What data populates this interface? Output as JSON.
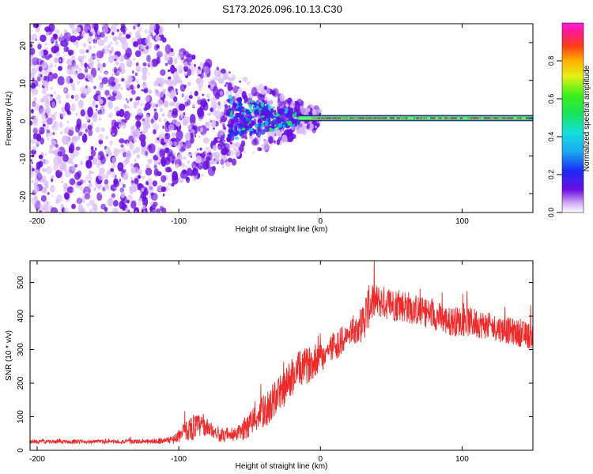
{
  "title": "S173.2026.096.10.13.C30",
  "colors": {
    "line": "#ee2a2a",
    "axis": "#000000",
    "center_blue": "#2a6df0",
    "center_green": "#1fe06a",
    "center_red": "#ff2a2a",
    "scatter_dark": "#6a0ee0",
    "scatter_light": "#d8bdf6"
  },
  "chart_data": [
    {
      "type": "heatmap",
      "title": "S173.2026.096.10.13.C30",
      "xlabel": "Height of straight line (km)",
      "ylabel": "Frequency (Hz)",
      "xlim": [
        -205,
        150
      ],
      "ylim": [
        -25,
        25
      ],
      "xticks": [
        -200,
        -100,
        0,
        100
      ],
      "yticks": [
        20,
        10,
        0,
        -10,
        -20
      ],
      "colorbar": {
        "label": "Normalized spectral amplitude",
        "range": [
          0,
          1
        ],
        "ticks": [
          0.0,
          0.2,
          0.4,
          0.6,
          0.8
        ]
      },
      "series": [
        {
          "name": "scatter-region",
          "x_range": [
            -205,
            -15
          ],
          "freq_range": [
            -25,
            25
          ],
          "note": "purple speckle, amplitude ~0.1-0.2"
        },
        {
          "name": "converging-band",
          "x_range": [
            -60,
            -15
          ],
          "freq_range": [
            -5,
            5
          ],
          "amplitude": [
            0.2,
            0.5
          ]
        },
        {
          "name": "center-band",
          "x_range": [
            -15,
            150
          ],
          "freq_range": [
            -0.6,
            0.6
          ],
          "amplitude": [
            0.6,
            0.95
          ]
        }
      ]
    },
    {
      "type": "line",
      "title": "",
      "xlabel": "Height of straight line (km)",
      "ylabel": "SNR (10 * v/v)",
      "xlim": [
        -205,
        150
      ],
      "ylim": [
        0,
        565
      ],
      "xticks": [
        -200,
        -100,
        0,
        100
      ],
      "yticks": [
        0,
        100,
        200,
        300,
        400,
        500
      ],
      "series": [
        {
          "name": "SNR",
          "x": [
            -205,
            -180,
            -150,
            -120,
            -105,
            -100,
            -95,
            -90,
            -85,
            -80,
            -75,
            -70,
            -65,
            -60,
            -55,
            -50,
            -45,
            -40,
            -35,
            -30,
            -25,
            -20,
            -15,
            -10,
            -5,
            0,
            5,
            10,
            15,
            20,
            25,
            30,
            33,
            35,
            40,
            50,
            60,
            70,
            80,
            90,
            100,
            110,
            120,
            130,
            140,
            150
          ],
          "values": [
            25,
            25,
            25,
            25,
            30,
            40,
            55,
            65,
            70,
            65,
            55,
            40,
            40,
            45,
            55,
            75,
            95,
            110,
            130,
            160,
            180,
            215,
            235,
            245,
            260,
            270,
            290,
            310,
            320,
            340,
            355,
            375,
            410,
            430,
            440,
            430,
            425,
            410,
            400,
            380,
            380,
            375,
            365,
            355,
            345,
            335
          ],
          "spread": [
            12,
            12,
            12,
            14,
            20,
            40,
            60,
            80,
            70,
            50,
            40,
            40,
            30,
            40,
            60,
            80,
            90,
            100,
            110,
            110,
            110,
            120,
            110,
            110,
            100,
            90,
            90,
            90,
            90,
            80,
            80,
            120,
            140,
            120,
            100,
            100,
            100,
            90,
            90,
            90,
            90,
            90,
            80,
            80,
            80,
            80
          ]
        }
      ]
    }
  ]
}
